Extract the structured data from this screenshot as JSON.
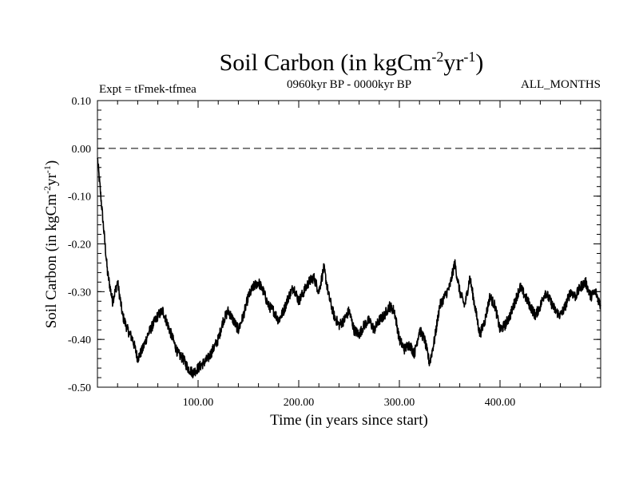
{
  "header": {
    "title_main": "Soil Carbon (in kgCm",
    "title_sup1": "-2",
    "title_mid": "yr",
    "title_sup2": "-1",
    "title_end": ")",
    "expt_label": "Expt = tFmek-tfmea",
    "period_label": "0960kyr BP - 0000kyr BP",
    "months_label": "ALL_MONTHS"
  },
  "axes": {
    "ylabel_main": "Soil Carbon (in kgCm",
    "ylabel_sup1": "-2",
    "ylabel_mid": "yr",
    "ylabel_sup2": "-1",
    "ylabel_end": ")",
    "xlabel": "Time (in years since start)"
  },
  "chart_data": {
    "type": "line",
    "title": "Soil Carbon (in kgCm-2yr-1)",
    "xlabel": "Time (in years since start)",
    "ylabel": "Soil Carbon (in kgCm-2yr-1)",
    "xlim": [
      0,
      500
    ],
    "ylim": [
      -0.5,
      0.1
    ],
    "x_ticks": [
      100,
      200,
      300,
      400
    ],
    "x_tick_labels": [
      "100.00",
      "200.00",
      "300.00",
      "400.00"
    ],
    "y_ticks": [
      0.1,
      0.0,
      -0.1,
      -0.2,
      -0.3,
      -0.4,
      -0.5
    ],
    "y_tick_labels": [
      "0.10",
      "0.00",
      "-0.10",
      "-0.20",
      "-0.30",
      "-0.40",
      "-0.50"
    ],
    "reference_line": {
      "y": 0.0,
      "style": "dashed"
    },
    "series": [
      {
        "name": "tFmek-tfmea",
        "x": [
          0,
          5,
          10,
          15,
          20,
          25,
          30,
          35,
          40,
          45,
          50,
          55,
          60,
          65,
          70,
          75,
          80,
          85,
          90,
          95,
          100,
          105,
          110,
          115,
          120,
          125,
          130,
          135,
          140,
          145,
          150,
          155,
          160,
          165,
          170,
          175,
          180,
          185,
          190,
          195,
          200,
          205,
          210,
          215,
          220,
          225,
          230,
          235,
          240,
          245,
          250,
          255,
          260,
          265,
          270,
          275,
          280,
          285,
          290,
          295,
          300,
          305,
          310,
          315,
          320,
          325,
          330,
          335,
          340,
          345,
          350,
          355,
          360,
          365,
          370,
          375,
          380,
          385,
          390,
          395,
          400,
          405,
          410,
          415,
          420,
          425,
          430,
          435,
          440,
          445,
          450,
          455,
          460,
          465,
          470,
          475,
          480,
          485,
          490,
          495,
          500
        ],
        "values": [
          -0.02,
          -0.14,
          -0.26,
          -0.32,
          -0.28,
          -0.35,
          -0.38,
          -0.4,
          -0.44,
          -0.42,
          -0.39,
          -0.37,
          -0.35,
          -0.34,
          -0.37,
          -0.4,
          -0.43,
          -0.44,
          -0.46,
          -0.47,
          -0.46,
          -0.45,
          -0.44,
          -0.42,
          -0.4,
          -0.36,
          -0.34,
          -0.36,
          -0.38,
          -0.35,
          -0.31,
          -0.29,
          -0.28,
          -0.3,
          -0.33,
          -0.34,
          -0.36,
          -0.34,
          -0.31,
          -0.29,
          -0.32,
          -0.3,
          -0.28,
          -0.27,
          -0.3,
          -0.25,
          -0.31,
          -0.35,
          -0.37,
          -0.36,
          -0.34,
          -0.38,
          -0.39,
          -0.37,
          -0.36,
          -0.38,
          -0.36,
          -0.35,
          -0.33,
          -0.34,
          -0.4,
          -0.42,
          -0.41,
          -0.43,
          -0.38,
          -0.4,
          -0.45,
          -0.4,
          -0.33,
          -0.31,
          -0.29,
          -0.24,
          -0.3,
          -0.33,
          -0.27,
          -0.33,
          -0.39,
          -0.36,
          -0.31,
          -0.33,
          -0.38,
          -0.37,
          -0.35,
          -0.32,
          -0.29,
          -0.31,
          -0.33,
          -0.35,
          -0.33,
          -0.3,
          -0.32,
          -0.34,
          -0.35,
          -0.33,
          -0.3,
          -0.31,
          -0.29,
          -0.28,
          -0.31,
          -0.3,
          -0.33
        ]
      }
    ]
  }
}
